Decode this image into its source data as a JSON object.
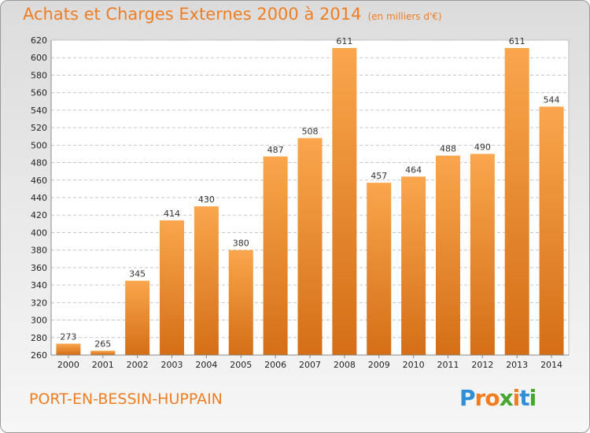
{
  "title": "Achats et Charges Externes 2000 à 2014",
  "unit": "(en milliers d'€)",
  "location": "PORT-EN-BESSIN-HUPPAIN",
  "logo": {
    "text": "Proxiti",
    "letters": [
      {
        "ch": "P",
        "color": "#2f8fd6"
      },
      {
        "ch": "r",
        "color": "#f07d1f"
      },
      {
        "ch": "o",
        "color": "#f07d1f"
      },
      {
        "ch": "x",
        "color": "#45a62f"
      },
      {
        "ch": "i",
        "color": "#f07d1f"
      },
      {
        "ch": "t",
        "color": "#2f8fd6"
      },
      {
        "ch": "i",
        "color": "#45a62f"
      }
    ]
  },
  "colors": {
    "accent": "#ef7d22",
    "bar_light": "#f9a64c",
    "bar_dark": "#d46e17",
    "grid": "#c6c6c6"
  },
  "chart_data": {
    "type": "bar",
    "title": "Achats et Charges Externes 2000 à 2014",
    "subtitle": "(en milliers d'€)",
    "categories": [
      "2000",
      "2001",
      "2002",
      "2003",
      "2004",
      "2005",
      "2006",
      "2007",
      "2008",
      "2009",
      "2010",
      "2011",
      "2012",
      "2013",
      "2014"
    ],
    "values": [
      273,
      265,
      345,
      414,
      430,
      380,
      487,
      508,
      611,
      457,
      464,
      488,
      490,
      611,
      544
    ],
    "ylim": [
      260,
      620
    ],
    "yticks": [
      260,
      280,
      300,
      320,
      340,
      360,
      380,
      400,
      420,
      440,
      460,
      480,
      500,
      520,
      540,
      560,
      580,
      600,
      620
    ],
    "grid": true,
    "legend": "none"
  }
}
